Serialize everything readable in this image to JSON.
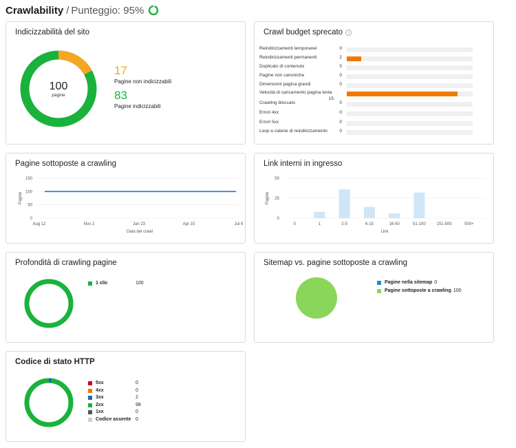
{
  "header": {
    "title": "Crawlability",
    "separator": "/",
    "score_label": "Punteggio: 95%",
    "score_value": 95
  },
  "indexability": {
    "title": "Indicizzabilità del sito",
    "center_value": "100",
    "center_label": "pagine",
    "non_indexable_count": "17",
    "non_indexable_label": "Pagine non indicizzabili",
    "indexable_count": "83",
    "indexable_label": "Pagine indicizzabili",
    "colors": {
      "non_indexable": "#f5a623",
      "indexable": "#1ab23c"
    }
  },
  "crawl_budget": {
    "title": "Crawl budget sprecato",
    "max_value": 15,
    "rows": [
      {
        "label": "Reindirizzamenti temporanei",
        "value": "0",
        "count": 0
      },
      {
        "label": "Reindirizzamenti permanenti",
        "value": "2",
        "count": 2
      },
      {
        "label": "Duplicato di contenuto",
        "value": "0",
        "count": 0
      },
      {
        "label": "Pagine non canoniche",
        "value": "0",
        "count": 0
      },
      {
        "label": "Dimensioni pagina grandi",
        "value": "0",
        "count": 0
      },
      {
        "label": "Velocità di caricamento pagina lenta",
        "value": "15",
        "count": 15
      },
      {
        "label": "Crawling bloccato",
        "value": "0",
        "count": 0
      },
      {
        "label": "Errori 4xx",
        "value": "0",
        "count": 0
      },
      {
        "label": "Errori 5xx",
        "value": "0",
        "count": 0
      },
      {
        "label": "Loop e catene di reindirizzamento",
        "value": "0",
        "count": 0
      }
    ]
  },
  "crawled_pages": {
    "title": "Pagine sottoposte a crawling",
    "chart_data": {
      "type": "line",
      "ylabel": "Pagine",
      "xlabel": "Data del crawl",
      "ylim": [
        0,
        150
      ],
      "yticks": [
        "150",
        "100",
        "50",
        "0"
      ],
      "xticks": [
        "Aug 12",
        "Nov 2",
        "Jan 23",
        "Apr 15",
        "Jul 6"
      ],
      "series": [
        {
          "values": [
            100,
            100,
            100,
            100,
            100
          ]
        }
      ],
      "color": "#1a73c8"
    }
  },
  "internal_links": {
    "title": "Link interni in ingresso",
    "chart_data": {
      "type": "bar",
      "ylabel": "Pagine",
      "xlabel": "Link",
      "ylim": [
        0,
        50
      ],
      "yticks": [
        "50",
        "25",
        "0"
      ],
      "categories": [
        "0",
        "1",
        "2-5",
        "6-15",
        "16-50",
        "51-150",
        "151-500",
        "500+"
      ],
      "values": [
        0,
        8,
        36,
        14,
        6,
        32,
        0,
        0
      ],
      "color": "#cfe6f7"
    }
  },
  "crawl_depth": {
    "title": "Profondità di crawling pagine",
    "legend": [
      {
        "label": "1 clic",
        "value": "100",
        "color": "#1ab23c"
      }
    ]
  },
  "sitemap": {
    "title": "Sitemap vs. pagine sottoposte a crawling",
    "legend": [
      {
        "label": "Pagine nella sitemap",
        "value": "0",
        "color": "#1a8ed8"
      },
      {
        "label": "Pagine sottoposte a crawling",
        "value": "100",
        "color": "#8ad65a"
      }
    ]
  },
  "http_status": {
    "title": "Codice di stato HTTP",
    "legend": [
      {
        "label": "5xx",
        "value": "0",
        "color": "#d0021b"
      },
      {
        "label": "4xx",
        "value": "0",
        "color": "#f07a00"
      },
      {
        "label": "3xx",
        "value": "2",
        "color": "#1a6cb0"
      },
      {
        "label": "2xx",
        "value": "98",
        "color": "#1ab23c"
      },
      {
        "label": "1xx",
        "value": "0",
        "color": "#555555"
      },
      {
        "label": "Codice assente",
        "value": "0",
        "color": "#c8d4d4"
      }
    ]
  }
}
